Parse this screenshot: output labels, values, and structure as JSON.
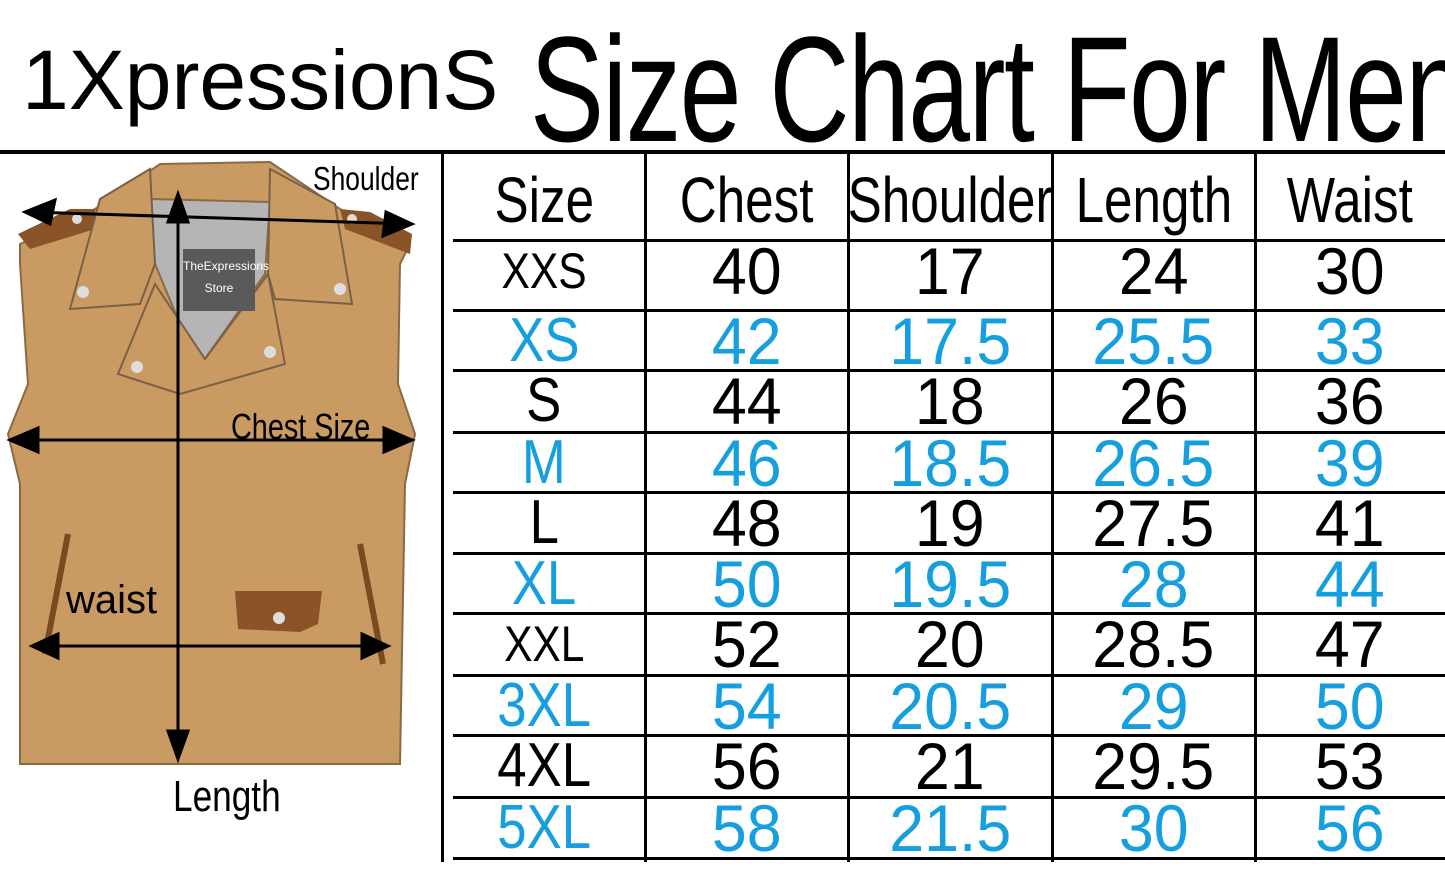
{
  "brand": "1XpressionS",
  "title": "Size Chart For Men",
  "colors": {
    "alt_row_text": "#159fdf",
    "vest": "#c99a62",
    "vest_trim": "#8a5428",
    "lining": "#b5b5b5"
  },
  "diagram": {
    "shoulder_label": "Shoulder",
    "chest_label": "Chest Size",
    "waist_label": "waist",
    "length_label": "Length",
    "tag_line1": "TheExpressions",
    "tag_line2": "Store"
  },
  "table": {
    "headers": [
      "Size",
      "Chest",
      "Shoulder",
      "Length",
      "Waist"
    ],
    "rows": [
      [
        "XXS",
        "40",
        "17",
        "24",
        "30"
      ],
      [
        "XS",
        "42",
        "17.5",
        "25.5",
        "33"
      ],
      [
        "S",
        "44",
        "18",
        "26",
        "36"
      ],
      [
        "M",
        "46",
        "18.5",
        "26.5",
        "39"
      ],
      [
        "L",
        "48",
        "19",
        "27.5",
        "41"
      ],
      [
        "XL",
        "50",
        "19.5",
        "28",
        "44"
      ],
      [
        "XXL",
        "52",
        "20",
        "28.5",
        "47"
      ],
      [
        "3XL",
        "54",
        "20.5",
        "29",
        "50"
      ],
      [
        "4XL",
        "56",
        "21",
        "29.5",
        "53"
      ],
      [
        "5XL",
        "58",
        "21.5",
        "30",
        "56"
      ]
    ]
  }
}
